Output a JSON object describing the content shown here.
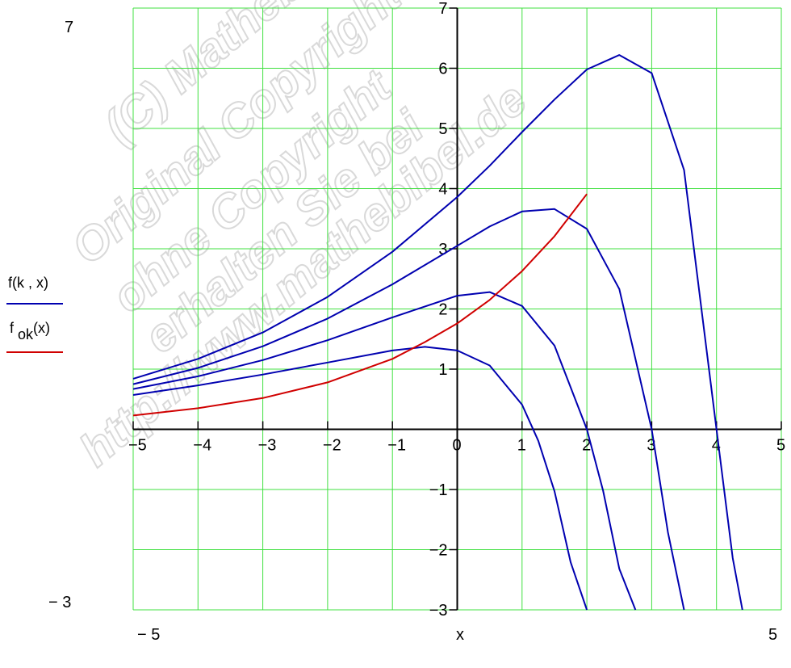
{
  "chart_data": {
    "type": "line",
    "xlabel": "x",
    "xlim": [
      -5,
      5
    ],
    "ylim": [
      -3,
      7
    ],
    "x_range_labels": [
      "− 5",
      "5"
    ],
    "y_range_labels": [
      "7",
      "− 3"
    ],
    "x_ticks": [
      "−5",
      "−4",
      "−3",
      "−2",
      "−1",
      "0",
      "1",
      "2",
      "3",
      "4",
      "5"
    ],
    "y_ticks": [
      "7",
      "6",
      "5",
      "4",
      "3",
      "2",
      "1",
      "−1",
      "−2",
      "−3"
    ],
    "x_tick_values": [
      -5,
      -4,
      -3,
      -2,
      -1,
      0,
      1,
      2,
      3,
      4,
      5
    ],
    "y_tick_values": [
      7,
      6,
      5,
      4,
      3,
      2,
      1,
      -1,
      -2,
      -3
    ],
    "grid": true,
    "legend": {
      "placement": "left",
      "entries": [
        {
          "main": "f(k , x)",
          "sub": "",
          "tail": "",
          "color": "#0000b0"
        },
        {
          "main": "f ",
          "sub": "ok",
          "tail": "(x)",
          "color": "#d00000"
        }
      ]
    },
    "series": [
      {
        "color": "#0000b0",
        "x": [
          -5,
          -4,
          -3,
          -2,
          -1,
          -0.5,
          0,
          0.5,
          1,
          1.25,
          1.5,
          1.75,
          2
        ],
        "y": [
          0.57,
          0.73,
          0.91,
          1.11,
          1.31,
          1.37,
          1.31,
          1.06,
          0.41,
          -0.19,
          -1.03,
          -2.21,
          -3.0
        ]
      },
      {
        "color": "#0000b0",
        "x": [
          -5,
          -4,
          -3,
          -2,
          -1,
          0,
          0.5,
          1,
          1.5,
          2,
          2.25,
          2.5,
          2.75
        ],
        "y": [
          0.67,
          0.88,
          1.15,
          1.48,
          1.86,
          2.22,
          2.28,
          2.05,
          1.39,
          0.0,
          -1.02,
          -2.32,
          -3.0
        ]
      },
      {
        "color": "#0000b0",
        "x": [
          -5,
          -4,
          -3,
          -2,
          -1,
          0,
          0.5,
          1,
          1.5,
          2,
          2.5,
          3,
          3.25,
          3.5
        ],
        "y": [
          0.75,
          1.02,
          1.38,
          1.84,
          2.41,
          3.05,
          3.37,
          3.62,
          3.66,
          3.33,
          2.33,
          0.0,
          -1.71,
          -3.0
        ]
      },
      {
        "color": "#0000b0",
        "x": [
          -5,
          -4,
          -3,
          -2,
          -1,
          0,
          0.5,
          1,
          1.5,
          2,
          2.5,
          3,
          3.5,
          4,
          4.25,
          4.4
        ],
        "y": [
          0.84,
          1.17,
          1.61,
          2.2,
          2.95,
          3.86,
          4.38,
          4.94,
          5.48,
          5.98,
          6.22,
          5.92,
          4.31,
          0.0,
          -2.14,
          -3.0
        ]
      },
      {
        "color": "#d00000",
        "x": [
          -5,
          -4,
          -3,
          -2,
          -1,
          -0.5,
          0,
          0.5,
          1,
          1.5,
          2
        ],
        "y": [
          0.23,
          0.35,
          0.52,
          0.78,
          1.17,
          1.45,
          1.76,
          2.15,
          2.63,
          3.21,
          3.91
        ]
      }
    ]
  }
}
